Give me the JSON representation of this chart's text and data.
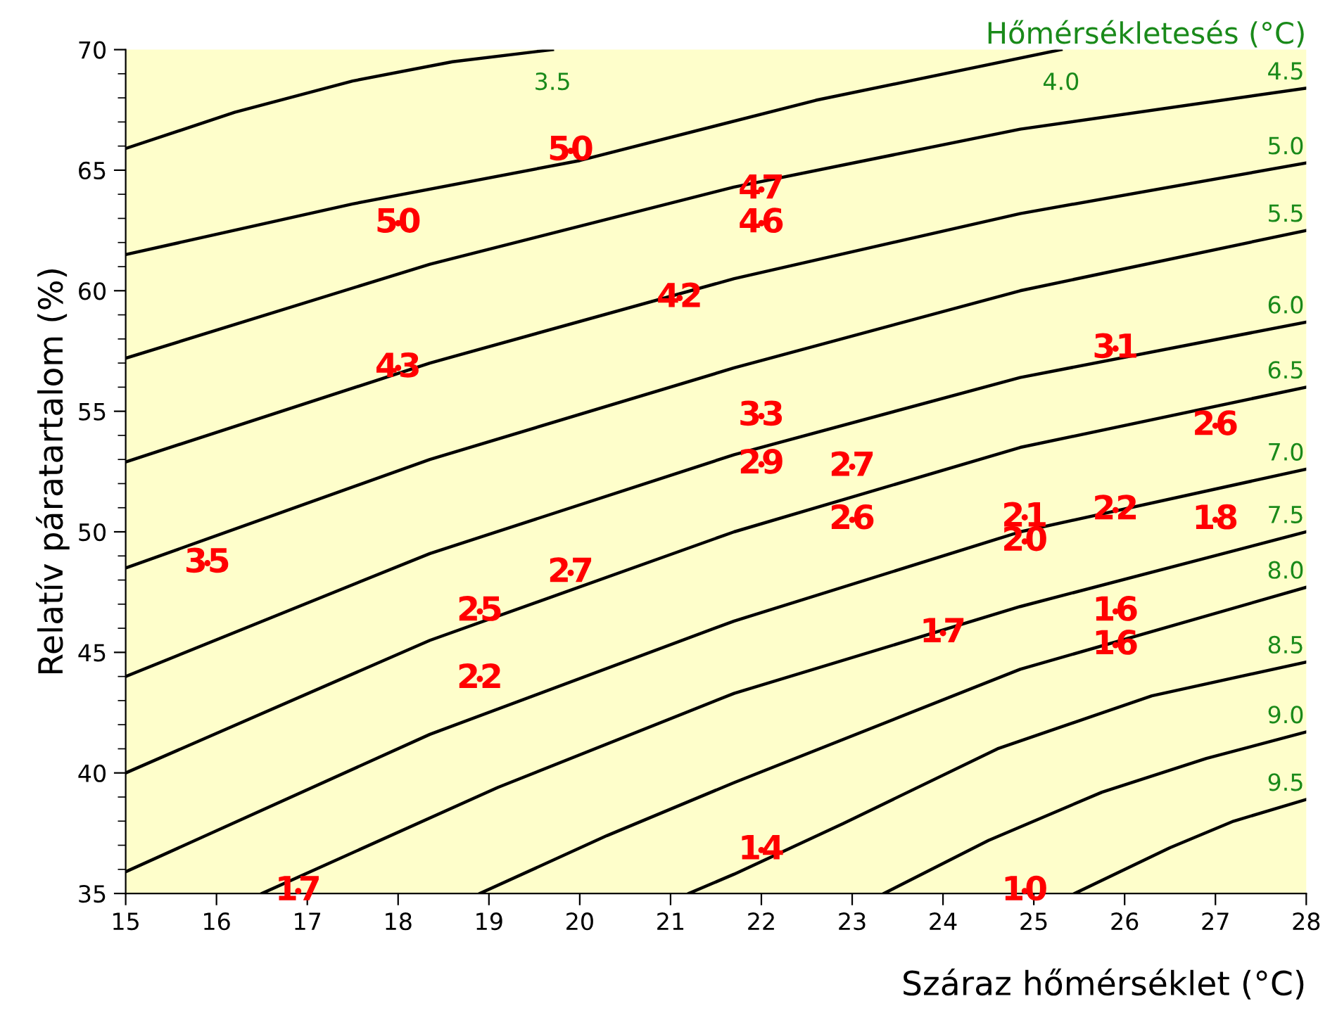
{
  "chart_data": {
    "type": "line",
    "title": "Hőmérsékletesés (°C)",
    "xlabel": "Száraz hőmérséklet (°C)",
    "ylabel": "Relatív páratartalom (%)",
    "xlim": [
      15,
      28
    ],
    "ylim": [
      35,
      70
    ],
    "xticks": [
      15,
      16,
      17,
      18,
      19,
      20,
      21,
      22,
      23,
      24,
      25,
      26,
      27,
      28
    ],
    "yticks": [
      35,
      40,
      45,
      50,
      55,
      60,
      65,
      70
    ],
    "grid": false,
    "legend": false,
    "marker": "none",
    "line_style": "solid",
    "series": [
      {
        "name": "3.5",
        "color": "#000000",
        "x": [
          15,
          16.2,
          17.5,
          18.6,
          19.7
        ],
        "values": [
          65.9,
          67.4,
          68.7,
          69.5,
          70
        ]
      },
      {
        "name": "4.0",
        "color": "#000000",
        "x": [
          15,
          17.5,
          20,
          22.6,
          25.3
        ],
        "values": [
          61.5,
          63.6,
          65.4,
          67.9,
          70
        ]
      },
      {
        "name": "4.5",
        "color": "#000000",
        "x": [
          15,
          18.35,
          21.7,
          24.85,
          28
        ],
        "values": [
          57.2,
          61.1,
          64.3,
          66.7,
          68.4
        ]
      },
      {
        "name": "5.0",
        "color": "#000000",
        "x": [
          15,
          18.35,
          21.7,
          24.85,
          28
        ],
        "values": [
          52.9,
          57.0,
          60.5,
          63.2,
          65.3
        ]
      },
      {
        "name": "5.5",
        "color": "#000000",
        "x": [
          15,
          18.35,
          21.7,
          24.85,
          28
        ],
        "values": [
          48.5,
          53.0,
          56.8,
          60.0,
          62.5
        ]
      },
      {
        "name": "6.0",
        "color": "#000000",
        "x": [
          15,
          18.35,
          21.7,
          24.85,
          28
        ],
        "values": [
          44.0,
          49.1,
          53.2,
          56.4,
          58.7
        ]
      },
      {
        "name": "6.5",
        "color": "#000000",
        "x": [
          15,
          18.35,
          21.7,
          24.85,
          28
        ],
        "values": [
          40.0,
          45.5,
          50.0,
          53.5,
          56.0
        ]
      },
      {
        "name": "7.0",
        "color": "#000000",
        "x": [
          15,
          18.35,
          21.7,
          24.85,
          28
        ],
        "values": [
          35.9,
          41.6,
          46.3,
          50.0,
          52.6
        ]
      },
      {
        "name": "7.5",
        "color": "#000000",
        "x": [
          16.5,
          19.1,
          21.7,
          24.85,
          28
        ],
        "values": [
          35,
          39.4,
          43.3,
          46.9,
          50.0
        ]
      },
      {
        "name": "8.0",
        "color": "#000000",
        "x": [
          18.9,
          20.3,
          21.7,
          24.85,
          28
        ],
        "values": [
          35,
          37.4,
          39.6,
          44.3,
          47.7
        ]
      },
      {
        "name": "8.5",
        "color": "#000000",
        "x": [
          21.2,
          21.7,
          22.9,
          24.6,
          26.3,
          28
        ],
        "values": [
          35,
          35.8,
          37.9,
          41.0,
          43.2,
          44.6
        ]
      },
      {
        "name": "9.0",
        "color": "#000000",
        "x": [
          23.35,
          24.5,
          25.75,
          26.9,
          28
        ],
        "values": [
          35,
          37.2,
          39.2,
          40.6,
          41.7
        ]
      },
      {
        "name": "9.5",
        "color": "#000000",
        "x": [
          25.45,
          26.5,
          27.2,
          28
        ],
        "values": [
          35,
          36.9,
          38.0,
          38.9
        ]
      },
      {
        "type": "scatter",
        "color": "#ff0000",
        "marker": "circle",
        "x": [
          19.9,
          18.0,
          22.0,
          22.0,
          21.1,
          18.0,
          25.9,
          22.0,
          27.0,
          22.0,
          23.0,
          23.0,
          24.9,
          24.9,
          25.9,
          27.0,
          15.9,
          19.9,
          18.9,
          18.9,
          24.0,
          25.9,
          25.9,
          22.0,
          16.9,
          24.9
        ],
        "values": [
          65.8,
          62.8,
          64.2,
          62.8,
          59.7,
          56.8,
          57.6,
          54.8,
          54.4,
          52.8,
          52.7,
          50.5,
          50.6,
          49.6,
          50.9,
          50.5,
          48.7,
          48.3,
          46.7,
          43.9,
          45.8,
          46.7,
          45.3,
          36.8,
          35.1,
          35.1
        ]
      }
    ],
    "annotations": [
      {
        "text": "50",
        "x": 19.9,
        "y": 65.8
      },
      {
        "text": "50",
        "x": 18.0,
        "y": 62.8
      },
      {
        "text": "47",
        "x": 22.0,
        "y": 64.2
      },
      {
        "text": "46",
        "x": 22.0,
        "y": 62.8
      },
      {
        "text": "42",
        "x": 21.1,
        "y": 59.7
      },
      {
        "text": "43",
        "x": 18.0,
        "y": 56.8
      },
      {
        "text": "31",
        "x": 25.9,
        "y": 57.6
      },
      {
        "text": "33",
        "x": 22.0,
        "y": 54.8
      },
      {
        "text": "26",
        "x": 27.0,
        "y": 54.4
      },
      {
        "text": "29",
        "x": 22.0,
        "y": 52.8
      },
      {
        "text": "27",
        "x": 23.0,
        "y": 52.7
      },
      {
        "text": "26",
        "x": 23.0,
        "y": 50.5
      },
      {
        "text": "21",
        "x": 24.9,
        "y": 50.6
      },
      {
        "text": "20",
        "x": 24.9,
        "y": 49.6
      },
      {
        "text": "22",
        "x": 25.9,
        "y": 50.9
      },
      {
        "text": "18",
        "x": 27.0,
        "y": 50.5
      },
      {
        "text": "35",
        "x": 15.9,
        "y": 48.7
      },
      {
        "text": "27",
        "x": 19.9,
        "y": 48.3
      },
      {
        "text": "25",
        "x": 18.9,
        "y": 46.7
      },
      {
        "text": "22",
        "x": 18.9,
        "y": 43.9
      },
      {
        "text": "17",
        "x": 24.0,
        "y": 45.8
      },
      {
        "text": "16",
        "x": 25.9,
        "y": 46.7
      },
      {
        "text": "16",
        "x": 25.9,
        "y": 45.3
      },
      {
        "text": "14",
        "x": 22.0,
        "y": 36.8
      },
      {
        "text": "17",
        "x": 16.9,
        "y": 35.1
      },
      {
        "text": "10",
        "x": 24.9,
        "y": 35.1
      }
    ]
  }
}
